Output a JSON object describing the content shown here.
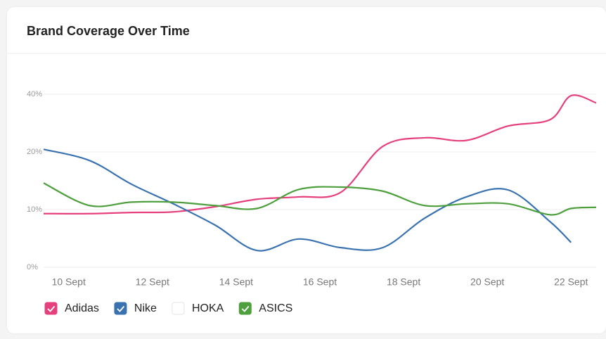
{
  "chart_data": {
    "type": "line",
    "title": "Brand Coverage Over Time",
    "x": [
      9.4,
      10.5,
      11.5,
      12.5,
      13.5,
      14.5,
      15.5,
      16.5,
      17.5,
      18.5,
      19.5,
      20.5,
      21.5,
      22.0,
      22.6
    ],
    "xlim": [
      9.4,
      22.6
    ],
    "xticks": [
      {
        "value": 10,
        "label": "10 Sept"
      },
      {
        "value": 12,
        "label": "12 Sept"
      },
      {
        "value": 14,
        "label": "14 Sept"
      },
      {
        "value": 16,
        "label": "16 Sept"
      },
      {
        "value": 18,
        "label": "18 Sept"
      },
      {
        "value": 20,
        "label": "20 Sept"
      },
      {
        "value": 22,
        "label": "22 Sept"
      }
    ],
    "ylim": [
      0,
      40
    ],
    "yticks": [
      {
        "value": 0,
        "label": "0%"
      },
      {
        "value": 10,
        "label": "10%"
      },
      {
        "value": 20,
        "label": "20%"
      },
      {
        "value": 40,
        "label": "40%"
      }
    ],
    "grid": true,
    "series": [
      {
        "name": "Adidas",
        "color": "#e5407d",
        "visible": true,
        "values": [
          9.3,
          9.3,
          9.5,
          9.6,
          10.5,
          11.8,
          12.2,
          13,
          21.9,
          24.9,
          24,
          29,
          31.2,
          39.5,
          37
        ]
      },
      {
        "name": "Nike",
        "color": "#3a72b0",
        "visible": true,
        "values": [
          20.9,
          18.5,
          14.4,
          11,
          7.3,
          2.9,
          4.9,
          3.4,
          3.4,
          8.5,
          12.2,
          13.4,
          7.9,
          4.3,
          null
        ]
      },
      {
        "name": "HOKA",
        "visible": false,
        "values": [
          null,
          null,
          null,
          null,
          null,
          null,
          null,
          null,
          null,
          null,
          null,
          null,
          null,
          null,
          null
        ]
      },
      {
        "name": "ASICS",
        "color": "#4e9f3d",
        "visible": true,
        "values": [
          14.6,
          10.7,
          11.3,
          11.3,
          10.7,
          10.2,
          13.5,
          13.9,
          13.2,
          10.7,
          11,
          11,
          9.1,
          10.2,
          10.4
        ]
      }
    ]
  }
}
